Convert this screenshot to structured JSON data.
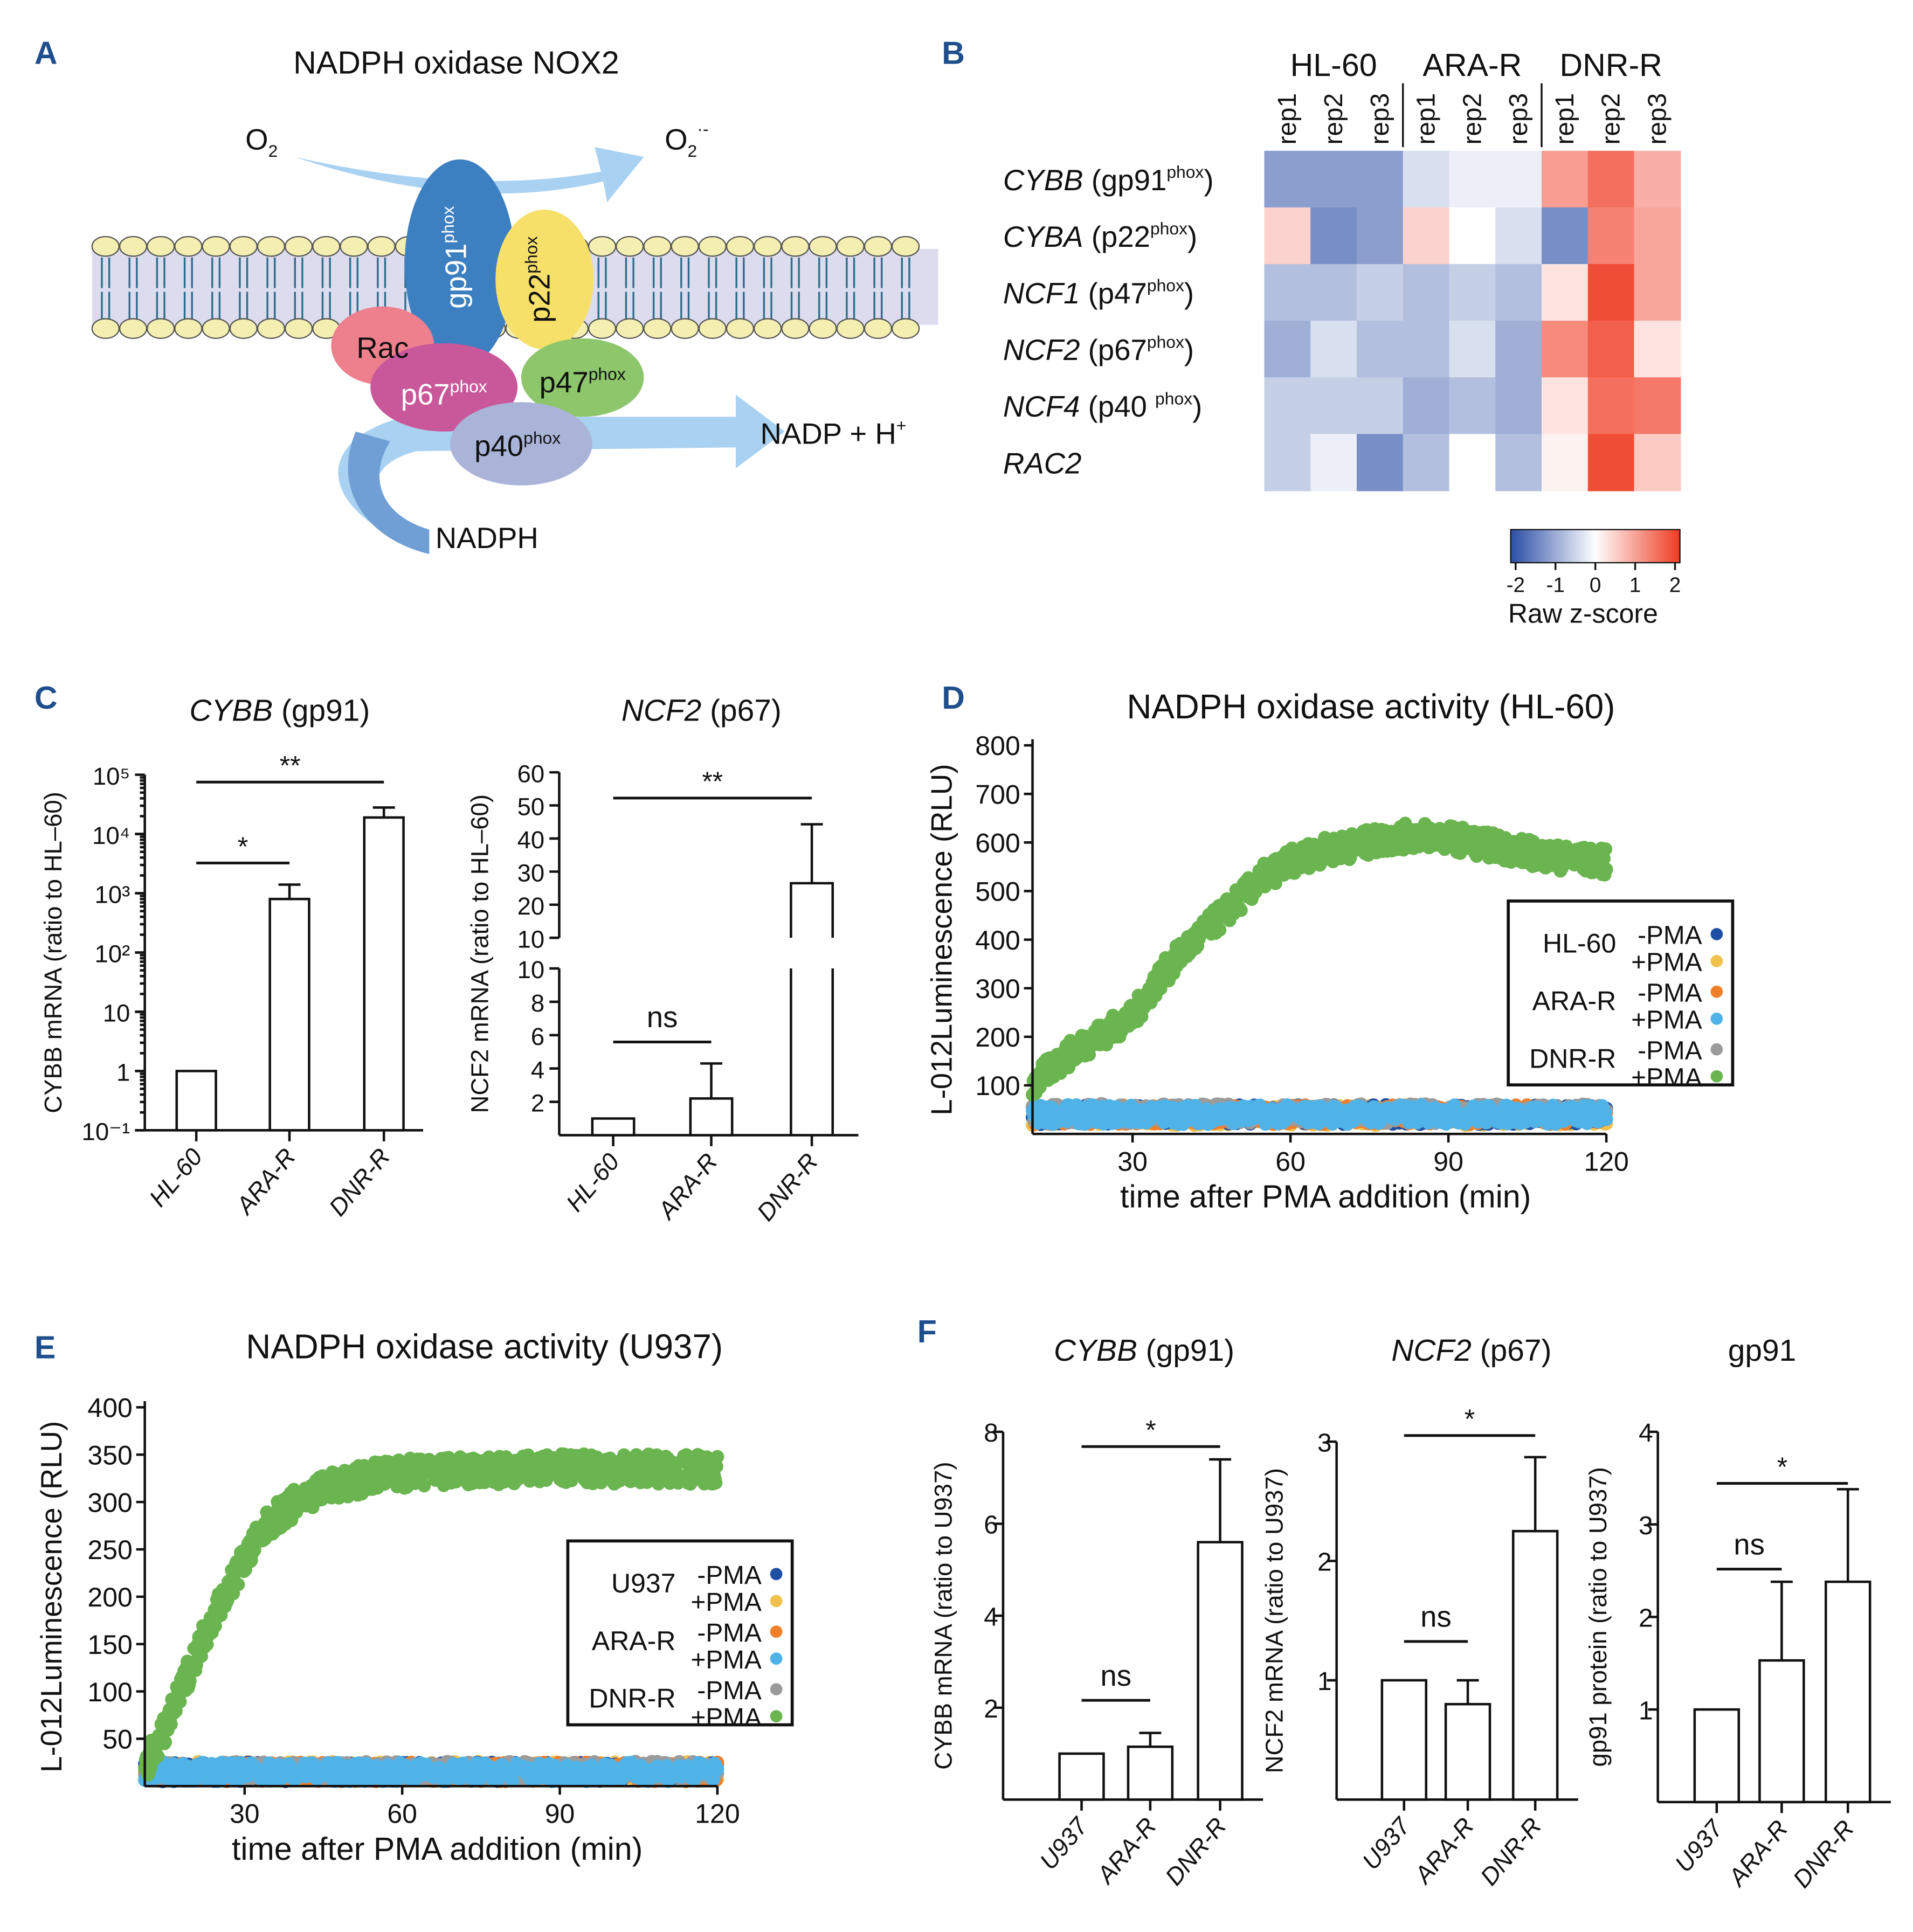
{
  "panel_letters": [
    "A",
    "B",
    "C",
    "D",
    "E",
    "F"
  ],
  "panel_a": {
    "title": "NADPH oxidase NOX2",
    "o2": "O",
    "o2_sub": "2",
    "superoxide": "O",
    "superoxide_sub": "2",
    "superoxide_sup": "·-",
    "nadp": "NADP + H",
    "nadp_sup": "+",
    "nadph": "NADPH",
    "subunits": [
      {
        "name": "gp91",
        "sup": "phox",
        "color": "#3d80c1"
      },
      {
        "name": "p22",
        "sup": "phox",
        "color": "#f6e06a"
      },
      {
        "name": "Rac",
        "sup": "",
        "color": "#ee7f8c"
      },
      {
        "name": "p67",
        "sup": "phox",
        "color": "#c9589b"
      },
      {
        "name": "p47",
        "sup": "phox",
        "color": "#8dc66b"
      },
      {
        "name": "p40",
        "sup": "phox",
        "color": "#aab4d9"
      }
    ]
  },
  "chart_data": [
    {
      "id": "B",
      "type": "heatmap",
      "group_labels": [
        "HL-60",
        "ARA-R",
        "DNR-R"
      ],
      "columns": [
        "rep1",
        "rep2",
        "rep3",
        "rep1",
        "rep2",
        "rep3",
        "rep1",
        "rep2",
        "rep3"
      ],
      "rows": [
        {
          "gene": "CYBB",
          "protein": "gp91",
          "sup": "phox"
        },
        {
          "gene": "CYBA",
          "protein": "p22",
          "sup": "phox"
        },
        {
          "gene": "NCF1",
          "protein": "p47",
          "sup": "phox"
        },
        {
          "gene": "NCF2",
          "protein": "p67",
          "sup": "phox"
        },
        {
          "gene": "NCF4",
          "protein": "p40 ",
          "sup": "phox"
        },
        {
          "gene": "RAC2",
          "protein": "",
          "sup": ""
        }
      ],
      "values": [
        [
          -1.2,
          -1.2,
          -1.2,
          -0.4,
          -0.2,
          -0.2,
          1.1,
          1.6,
          0.9
        ],
        [
          0.5,
          -1.4,
          -1.2,
          0.5,
          0.0,
          -0.4,
          -1.4,
          1.4,
          1.0
        ],
        [
          -0.8,
          -0.8,
          -0.6,
          -0.8,
          -0.6,
          -0.8,
          0.3,
          2.0,
          1.0
        ],
        [
          -1.0,
          -0.4,
          -0.8,
          -0.8,
          -0.4,
          -1.0,
          1.3,
          1.8,
          0.3
        ],
        [
          -0.6,
          -0.6,
          -0.6,
          -1.0,
          -0.8,
          -1.0,
          0.3,
          1.6,
          1.5
        ],
        [
          -0.6,
          -0.2,
          -1.4,
          -0.8,
          0.0,
          -0.8,
          0.15,
          2.0,
          0.6
        ]
      ],
      "colorbar": {
        "label": "Raw z-score",
        "ticks": [
          "-2",
          "-1",
          "0",
          "1",
          "2"
        ],
        "range": [
          -2.2,
          2.2
        ],
        "low": "#2b4ea5",
        "mid": "#ffffff",
        "high": "#ef3b22"
      }
    },
    {
      "id": "C1",
      "type": "bar",
      "title_italic": "CYBB",
      "title_rest": " (gp91)",
      "ylabel": "CYBB mRNA (ratio to HL–60)",
      "yscale": "log",
      "ylim": [
        0.1,
        100000
      ],
      "yticks": [
        {
          "v": 100000,
          "l": "10⁵"
        },
        {
          "v": 10000,
          "l": "10⁴"
        },
        {
          "v": 1000,
          "l": "10³"
        },
        {
          "v": 100,
          "l": "10²"
        },
        {
          "v": 10,
          "l": "10"
        },
        {
          "v": 1,
          "l": "1"
        },
        {
          "v": 0.1,
          "l": "10⁻¹"
        }
      ],
      "categories": [
        "HL-60",
        "ARA-R",
        "DNR-R"
      ],
      "values": [
        1,
        800,
        19000
      ],
      "error_upper": [
        null,
        1400,
        28000
      ],
      "significance": [
        {
          "from": 0,
          "to": 1,
          "label": "*"
        },
        {
          "from": 0,
          "to": 2,
          "label": "**"
        }
      ]
    },
    {
      "id": "C2",
      "type": "bar",
      "title_italic": "NCF2",
      "title_rest": " (p67)",
      "ylabel": "NCF2 mRNA (ratio to HL–60)",
      "yscale": "linear, broken axis",
      "ylim_lower": [
        0,
        10
      ],
      "ylim_upper": [
        10,
        60
      ],
      "yticks_lower": [
        "2",
        "4",
        "6",
        "8",
        "10"
      ],
      "yticks_upper": [
        "10",
        "20",
        "30",
        "40",
        "50",
        "60"
      ],
      "categories": [
        "HL-60",
        "ARA-R",
        "DNR-R"
      ],
      "values": [
        1,
        2.2,
        26.5
      ],
      "error_upper": [
        null,
        4.3,
        44.3
      ],
      "significance": [
        {
          "from": 0,
          "to": 1,
          "label": "ns"
        },
        {
          "from": 0,
          "to": 2,
          "label": "**"
        }
      ]
    },
    {
      "id": "D",
      "type": "scatter",
      "title": "NADPH oxidase activity (HL-60)",
      "xlabel": "time after PMA addition (min)",
      "ylabel": "L-012Luminescence (RLU)",
      "xlim": [
        11,
        120
      ],
      "ylim": [
        0,
        800
      ],
      "xticks": [
        "30",
        "60",
        "90",
        "120"
      ],
      "yticks": [
        "100",
        "200",
        "300",
        "400",
        "500",
        "600",
        "700",
        "800"
      ],
      "legend": {
        "placement": "right",
        "groups": [
          {
            "name": "HL-60",
            "items": [
              {
                "label": "-PMA",
                "color": "#1f4fa3"
              },
              {
                "label": "+PMA",
                "color": "#f1c14e"
              }
            ]
          },
          {
            "name": "ARA-R",
            "items": [
              {
                "label": "-PMA",
                "color": "#f07f2a"
              },
              {
                "label": "+PMA",
                "color": "#4fb3e8"
              }
            ]
          },
          {
            "name": "DNR-R",
            "items": [
              {
                "label": "-PMA",
                "color": "#9b9b9b"
              },
              {
                "label": "+PMA",
                "color": "#6ab54f"
              }
            ]
          }
        ]
      },
      "series": [
        {
          "name": "HL-60 -PMA",
          "color": "#1f4fa3",
          "x": [
            11,
            30,
            60,
            90,
            120
          ],
          "y": [
            40,
            40,
            40,
            40,
            40
          ]
        },
        {
          "name": "HL-60 +PMA",
          "color": "#f1c14e",
          "x": [
            11,
            30,
            60,
            90,
            120
          ],
          "y": [
            38,
            38,
            38,
            38,
            38
          ]
        },
        {
          "name": "ARA-R -PMA",
          "color": "#f07f2a",
          "x": [
            11,
            30,
            60,
            90,
            120
          ],
          "y": [
            40,
            40,
            40,
            40,
            40
          ]
        },
        {
          "name": "ARA-R +PMA",
          "color": "#4fb3e8",
          "x": [
            11,
            30,
            60,
            90,
            120
          ],
          "y": [
            40,
            40,
            40,
            40,
            40
          ]
        },
        {
          "name": "DNR-R -PMA",
          "color": "#9b9b9b",
          "x": [
            11,
            30,
            60,
            90,
            120
          ],
          "y": [
            42,
            42,
            42,
            42,
            42
          ]
        },
        {
          "name": "DNR-R +PMA",
          "color": "#6ab54f",
          "x": [
            11,
            15,
            20,
            25,
            30,
            35,
            40,
            45,
            50,
            55,
            60,
            65,
            70,
            75,
            80,
            85,
            90,
            95,
            100,
            105,
            110,
            115,
            120
          ],
          "y": [
            100,
            140,
            180,
            210,
            240,
            320,
            380,
            430,
            480,
            530,
            560,
            580,
            590,
            600,
            610,
            615,
            610,
            600,
            590,
            580,
            570,
            565,
            560
          ]
        }
      ]
    },
    {
      "id": "E",
      "type": "scatter",
      "title": "NADPH oxidase activity (U937)",
      "xlabel": "time after PMA addition (min)",
      "ylabel": "L-012Luminescence (RLU)",
      "xlim": [
        11,
        120
      ],
      "ylim": [
        0,
        400
      ],
      "xticks": [
        "30",
        "60",
        "90",
        "120"
      ],
      "yticks": [
        "50",
        "100",
        "150",
        "200",
        "250",
        "300",
        "350",
        "400"
      ],
      "legend": {
        "placement": "right",
        "groups": [
          {
            "name": "U937",
            "items": [
              {
                "label": "-PMA",
                "color": "#1f4fa3"
              },
              {
                "label": "+PMA",
                "color": "#f1c14e"
              }
            ]
          },
          {
            "name": "ARA-R",
            "items": [
              {
                "label": "-PMA",
                "color": "#f07f2a"
              },
              {
                "label": "+PMA",
                "color": "#4fb3e8"
              }
            ]
          },
          {
            "name": "DNR-R",
            "items": [
              {
                "label": "-PMA",
                "color": "#9b9b9b"
              },
              {
                "label": "+PMA",
                "color": "#6ab54f"
              }
            ]
          }
        ]
      },
      "series": [
        {
          "name": "U937 -PMA",
          "color": "#1f4fa3",
          "x": [
            11,
            30,
            60,
            90,
            120
          ],
          "y": [
            15,
            15,
            15,
            15,
            15
          ]
        },
        {
          "name": "U937 +PMA",
          "color": "#f1c14e",
          "x": [
            11,
            30,
            60,
            90,
            120
          ],
          "y": [
            16,
            16,
            16,
            16,
            16
          ]
        },
        {
          "name": "ARA-R -PMA",
          "color": "#f07f2a",
          "x": [
            11,
            30,
            60,
            90,
            120
          ],
          "y": [
            15,
            15,
            15,
            15,
            15
          ]
        },
        {
          "name": "ARA-R +PMA",
          "color": "#4fb3e8",
          "x": [
            11,
            30,
            60,
            90,
            120
          ],
          "y": [
            15,
            15,
            15,
            15,
            15
          ]
        },
        {
          "name": "DNR-R -PMA",
          "color": "#9b9b9b",
          "x": [
            11,
            30,
            60,
            90,
            120
          ],
          "y": [
            16,
            16,
            16,
            16,
            16
          ]
        },
        {
          "name": "DNR-R +PMA",
          "color": "#6ab54f",
          "x": [
            11,
            15,
            20,
            25,
            30,
            35,
            40,
            45,
            50,
            55,
            60,
            70,
            80,
            90,
            100,
            110,
            120
          ],
          "y": [
            20,
            60,
            130,
            190,
            240,
            280,
            300,
            315,
            320,
            328,
            330,
            332,
            333,
            335,
            335,
            335,
            335
          ]
        }
      ]
    },
    {
      "id": "F1",
      "type": "bar",
      "title_italic": "CYBB",
      "title_rest": " (gp91)",
      "ylabel": "CYBB mRNA (ratio to U937)",
      "ylim": [
        0,
        8
      ],
      "yticks": [
        "2",
        "4",
        "6",
        "8"
      ],
      "ytick_values": [
        2,
        4,
        6,
        8
      ],
      "categories": [
        "U937",
        "ARA-R",
        "DNR-R"
      ],
      "values": [
        1,
        1.15,
        5.6
      ],
      "error_upper": [
        null,
        1.45,
        7.4
      ],
      "significance": [
        {
          "from": 0,
          "to": 1,
          "label": "ns"
        },
        {
          "from": 0,
          "to": 2,
          "label": "*"
        }
      ]
    },
    {
      "id": "F2",
      "type": "bar",
      "title_italic": "NCF2",
      "title_rest": " (p67)",
      "ylabel": "NCF2 mRNA (ratio to U937)",
      "ylim": [
        0,
        3
      ],
      "yticks": [
        "1",
        "2",
        "3"
      ],
      "ytick_values": [
        1,
        2,
        3
      ],
      "categories": [
        "U937",
        "ARA-R",
        "DNR-R"
      ],
      "values": [
        1,
        0.8,
        2.25
      ],
      "error_upper": [
        null,
        1.0,
        2.87
      ],
      "significance": [
        {
          "from": 0,
          "to": 1,
          "label": "ns"
        },
        {
          "from": 0,
          "to": 2,
          "label": "*"
        }
      ]
    },
    {
      "id": "F3",
      "type": "bar",
      "title_italic": "",
      "title_rest": "gp91",
      "ylabel": "gp91 protein  (ratio to U937)",
      "ylim": [
        0,
        4
      ],
      "yticks": [
        "1",
        "2",
        "3",
        "4"
      ],
      "ytick_values": [
        1,
        2,
        3,
        4
      ],
      "categories": [
        "U937",
        "ARA-R",
        "DNR-R"
      ],
      "values": [
        1,
        1.53,
        2.38
      ],
      "error_upper": [
        null,
        2.38,
        3.38
      ],
      "significance": [
        {
          "from": 0,
          "to": 1,
          "label": "ns"
        },
        {
          "from": 0,
          "to": 2,
          "label": "*"
        }
      ]
    }
  ]
}
